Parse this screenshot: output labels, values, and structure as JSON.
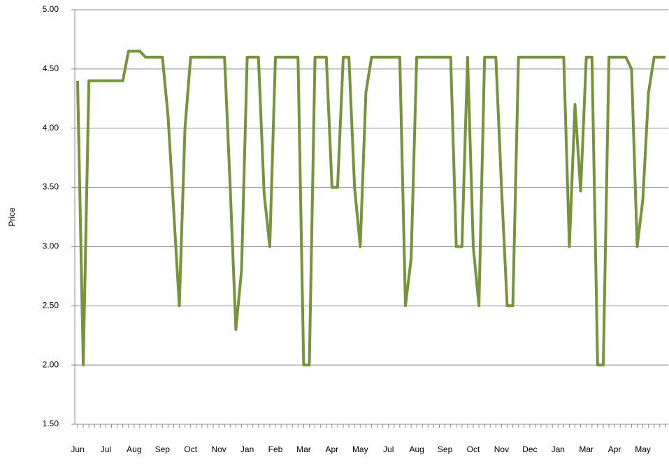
{
  "chart_data": {
    "type": "line",
    "y_label": "Price",
    "categories": [
      "Jun",
      null,
      null,
      null,
      null,
      "Jul",
      null,
      null,
      null,
      null,
      "Aug",
      null,
      null,
      null,
      null,
      "Sep",
      null,
      null,
      null,
      null,
      "Oct",
      null,
      null,
      null,
      null,
      "Nov",
      null,
      null,
      null,
      null,
      "Jan",
      null,
      null,
      null,
      null,
      "Feb",
      null,
      null,
      null,
      null,
      "Mar",
      null,
      null,
      null,
      null,
      "Apr",
      null,
      null,
      null,
      null,
      "May",
      null,
      null,
      null,
      null,
      "Jul",
      null,
      null,
      null,
      null,
      "Aug",
      null,
      null,
      null,
      null,
      "Sep",
      null,
      null,
      null,
      null,
      "Oct",
      null,
      null,
      null,
      null,
      "Nov",
      null,
      null,
      null,
      null,
      "Dec",
      null,
      null,
      null,
      null,
      "Jan",
      null,
      null,
      null,
      null,
      "Mar",
      null,
      null,
      null,
      null,
      "Apr",
      null,
      null,
      null,
      null,
      "May",
      null,
      null,
      null,
      null
    ],
    "values": [
      4.4,
      2.0,
      4.4,
      4.4,
      4.4,
      4.4,
      4.4,
      4.4,
      4.4,
      4.65,
      4.65,
      4.65,
      4.6,
      4.6,
      4.6,
      4.6,
      4.1,
      3.3,
      2.5,
      4.0,
      4.6,
      4.6,
      4.6,
      4.6,
      4.6,
      4.6,
      4.6,
      3.5,
      2.3,
      2.8,
      4.6,
      4.6,
      4.6,
      3.45,
      3.0,
      4.6,
      4.6,
      4.6,
      4.6,
      4.6,
      2.0,
      2.0,
      4.6,
      4.6,
      4.6,
      3.5,
      3.5,
      4.6,
      4.6,
      3.5,
      3.0,
      4.3,
      4.6,
      4.6,
      4.6,
      4.6,
      4.6,
      4.6,
      2.5,
      2.9,
      4.6,
      4.6,
      4.6,
      4.6,
      4.6,
      4.6,
      4.6,
      3.0,
      3.0,
      4.6,
      3.0,
      2.5,
      4.6,
      4.6,
      4.6,
      3.5,
      2.5,
      2.5,
      4.6,
      4.6,
      4.6,
      4.6,
      4.6,
      4.6,
      4.6,
      4.6,
      4.6,
      3.0,
      4.2,
      3.47,
      4.6,
      4.6,
      2.0,
      2.0,
      4.6,
      4.6,
      4.6,
      4.6,
      4.5,
      3.0,
      3.4,
      4.3,
      4.6,
      4.6,
      4.6
    ],
    "color": "#77933c",
    "ylim": [
      1.5,
      5
    ],
    "yticks": [
      {
        "value": 1.5,
        "label": "1.50"
      },
      {
        "value": 2,
        "label": "2.00"
      },
      {
        "value": 2.5,
        "label": "2.50"
      },
      {
        "value": 3,
        "label": "3.00"
      },
      {
        "value": 3.5,
        "label": "3.50"
      },
      {
        "value": 4,
        "label": "4.00"
      },
      {
        "value": 4.5,
        "label": "4.50"
      },
      {
        "value": 5,
        "label": "5.00"
      }
    ],
    "grid": true
  }
}
